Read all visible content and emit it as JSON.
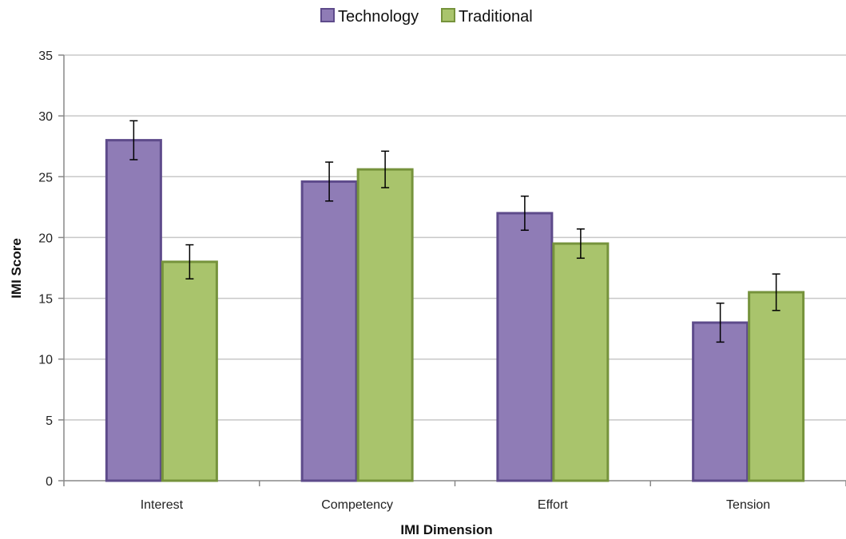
{
  "chart_data": {
    "type": "bar",
    "title": "",
    "xlabel": "IMI Dimension",
    "ylabel": "IMI Score",
    "categories": [
      "Interest",
      "Competency",
      "Effort",
      "Tension"
    ],
    "ylim": [
      0,
      35
    ],
    "yticks": [
      0,
      5,
      10,
      15,
      20,
      25,
      30,
      35
    ],
    "grid": true,
    "legend_position": "top",
    "series": [
      {
        "name": "Technology",
        "values": [
          28.0,
          24.6,
          22.0,
          13.0
        ],
        "error": [
          1.6,
          1.6,
          1.4,
          1.6
        ],
        "color": "#8f7cb6",
        "border": "#5e4b8b"
      },
      {
        "name": "Traditional",
        "values": [
          18.0,
          25.6,
          19.5,
          15.5
        ],
        "error": [
          1.4,
          1.5,
          1.2,
          1.5
        ],
        "color": "#a9c46c",
        "border": "#76933c"
      }
    ]
  }
}
